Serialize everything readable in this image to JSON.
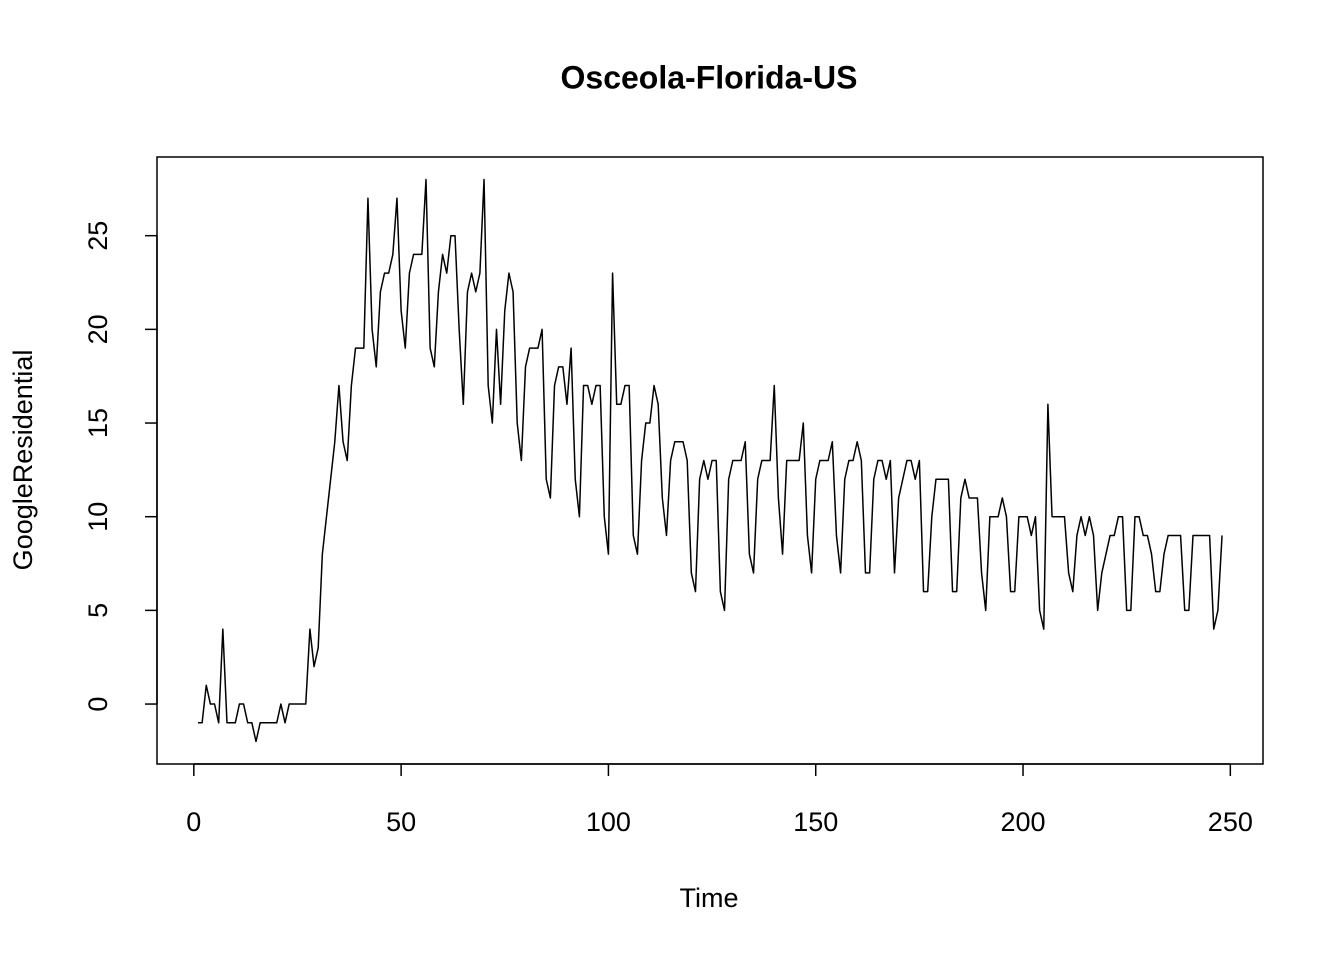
{
  "chart_data": {
    "type": "line",
    "title": "Osceola-Florida-US",
    "x_label": "Time",
    "y_label": "GoogleResidential",
    "x": [
      1,
      2,
      3,
      4,
      5,
      6,
      7,
      8,
      9,
      10,
      11,
      12,
      13,
      14,
      15,
      16,
      17,
      18,
      19,
      20,
      21,
      22,
      23,
      24,
      25,
      26,
      27,
      28,
      29,
      30,
      31,
      32,
      33,
      34,
      35,
      36,
      37,
      38,
      39,
      40,
      41,
      42,
      43,
      44,
      45,
      46,
      47,
      48,
      49,
      50,
      51,
      52,
      53,
      54,
      55,
      56,
      57,
      58,
      59,
      60,
      61,
      62,
      63,
      64,
      65,
      66,
      67,
      68,
      69,
      70,
      71,
      72,
      73,
      74,
      75,
      76,
      77,
      78,
      79,
      80,
      81,
      82,
      83,
      84,
      85,
      86,
      87,
      88,
      89,
      90,
      91,
      92,
      93,
      94,
      95,
      96,
      97,
      98,
      99,
      100,
      101,
      102,
      103,
      104,
      105,
      106,
      107,
      108,
      109,
      110,
      111,
      112,
      113,
      114,
      115,
      116,
      117,
      118,
      119,
      120,
      121,
      122,
      123,
      124,
      125,
      126,
      127,
      128,
      129,
      130,
      131,
      132,
      133,
      134,
      135,
      136,
      137,
      138,
      139,
      140,
      141,
      142,
      143,
      144,
      145,
      146,
      147,
      148,
      149,
      150,
      151,
      152,
      153,
      154,
      155,
      156,
      157,
      158,
      159,
      160,
      161,
      162,
      163,
      164,
      165,
      166,
      167,
      168,
      169,
      170,
      171,
      172,
      173,
      174,
      175,
      176,
      177,
      178,
      179,
      180,
      181,
      182,
      183,
      184,
      185,
      186,
      187,
      188,
      189,
      190,
      191,
      192,
      193,
      194,
      195,
      196,
      197,
      198,
      199,
      200,
      201,
      202,
      203,
      204,
      205,
      206,
      207,
      208,
      209,
      210,
      211,
      212,
      213,
      214,
      215,
      216,
      217,
      218,
      219,
      220,
      221,
      222,
      223,
      224,
      225,
      226,
      227,
      228,
      229,
      230,
      231,
      232,
      233,
      234,
      235,
      236,
      237,
      238,
      239,
      240,
      241,
      242,
      243,
      244,
      245,
      246,
      247,
      248
    ],
    "values": [
      -1,
      -1,
      1,
      0,
      0,
      -1,
      4,
      -1,
      -1,
      -1,
      0,
      0,
      -1,
      -1,
      -2,
      -1,
      -1,
      -1,
      -1,
      -1,
      0,
      -1,
      0,
      0,
      0,
      0,
      0,
      4,
      2,
      3,
      8,
      10,
      12,
      14,
      17,
      14,
      13,
      17,
      19,
      19,
      19,
      27,
      20,
      18,
      22,
      23,
      23,
      24,
      27,
      21,
      19,
      23,
      24,
      24,
      24,
      28,
      19,
      18,
      22,
      24,
      23,
      25,
      25,
      20,
      16,
      22,
      23,
      22,
      23,
      28,
      17,
      15,
      20,
      16,
      21,
      23,
      22,
      15,
      13,
      18,
      19,
      19,
      19,
      20,
      12,
      11,
      17,
      18,
      18,
      16,
      19,
      12,
      10,
      17,
      17,
      16,
      17,
      17,
      10,
      8,
      23,
      16,
      16,
      17,
      17,
      9,
      8,
      13,
      15,
      15,
      17,
      16,
      11,
      9,
      13,
      14,
      14,
      14,
      13,
      7,
      6,
      12,
      13,
      12,
      13,
      13,
      6,
      5,
      12,
      13,
      13,
      13,
      14,
      8,
      7,
      12,
      13,
      13,
      13,
      17,
      11,
      8,
      13,
      13,
      13,
      13,
      15,
      9,
      7,
      12,
      13,
      13,
      13,
      14,
      9,
      7,
      12,
      13,
      13,
      14,
      13,
      7,
      7,
      12,
      13,
      13,
      12,
      13,
      7,
      11,
      12,
      13,
      13,
      12,
      13,
      6,
      6,
      10,
      12,
      12,
      12,
      12,
      6,
      6,
      11,
      12,
      11,
      11,
      11,
      7,
      5,
      10,
      10,
      10,
      11,
      10,
      6,
      6,
      10,
      10,
      10,
      9,
      10,
      5,
      4,
      16,
      10,
      10,
      10,
      10,
      7,
      6,
      9,
      10,
      9,
      10,
      9,
      5,
      7,
      8,
      9,
      9,
      10,
      10,
      5,
      5,
      10,
      10,
      9,
      9,
      8,
      6,
      6,
      8,
      9,
      9,
      9,
      9,
      5,
      5,
      9,
      9,
      9,
      9,
      9,
      4,
      5,
      9
    ],
    "color": "#000000",
    "xlim": [
      -8.88,
      257.88
    ],
    "xticks": [
      0,
      50,
      100,
      150,
      200,
      250
    ],
    "ylim": [
      -3.2,
      29.2
    ],
    "yticks": [
      0,
      5,
      10,
      15,
      20,
      25
    ]
  }
}
